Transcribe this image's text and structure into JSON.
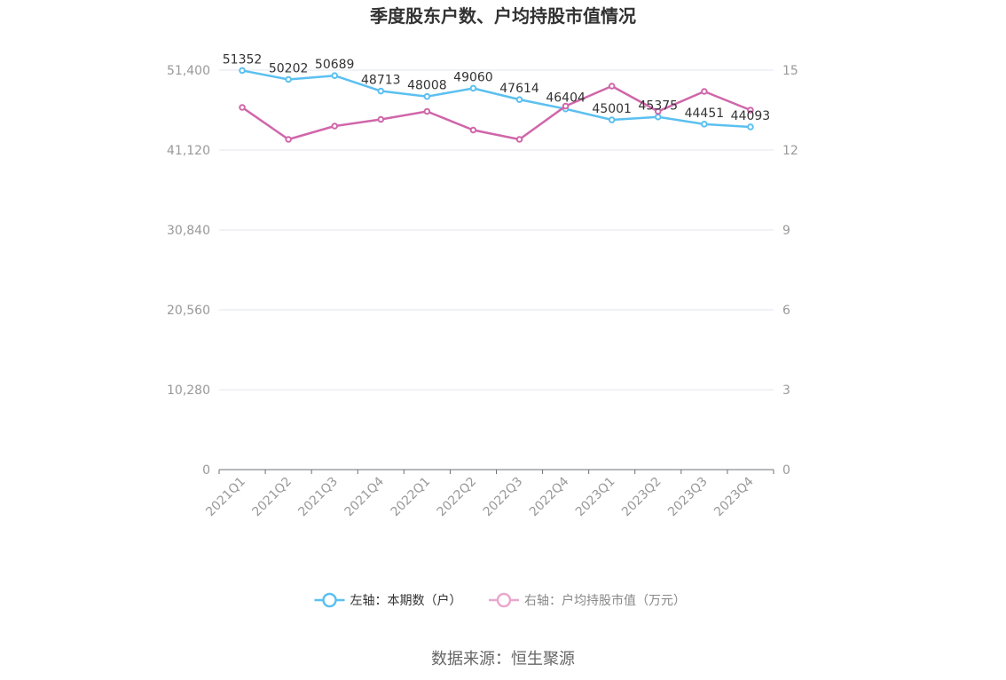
{
  "chart_data": {
    "type": "line",
    "title": "季度股东户数、户均持股市值情况",
    "categories": [
      "2021Q1",
      "2021Q2",
      "2021Q3",
      "2021Q4",
      "2022Q1",
      "2022Q2",
      "2022Q3",
      "2022Q4",
      "2023Q1",
      "2023Q2",
      "2023Q3",
      "2023Q4"
    ],
    "y_left": {
      "ticks": [
        "0",
        "10,280",
        "20,560",
        "30,840",
        "41,120",
        "51,400"
      ],
      "range": [
        0,
        51400
      ]
    },
    "y_right": {
      "ticks": [
        "0",
        "3",
        "6",
        "9",
        "12",
        "15"
      ],
      "range": [
        0,
        15
      ]
    },
    "series": [
      {
        "name": "左轴：本期数（户）",
        "axis": "left",
        "color": "#5bc0f0",
        "values": [
          51352,
          50202,
          50689,
          48713,
          48008,
          49060,
          47614,
          46404,
          45001,
          45375,
          44451,
          44093
        ],
        "labels": [
          "51352",
          "50202",
          "50689",
          "48713",
          "48008",
          "49060",
          "47614",
          "46404",
          "45001",
          "45375",
          "44451",
          "44093"
        ]
      },
      {
        "name": "右轴：户均持股市值（万元）",
        "axis": "right",
        "color": "#d066aa",
        "values": [
          13.6,
          12.4,
          12.9,
          13.15,
          13.45,
          12.75,
          12.4,
          13.65,
          14.4,
          13.45,
          14.2,
          13.5
        ]
      }
    ],
    "legend_position": "bottom-center",
    "grid": true
  },
  "source": "数据来源：恒生聚源"
}
